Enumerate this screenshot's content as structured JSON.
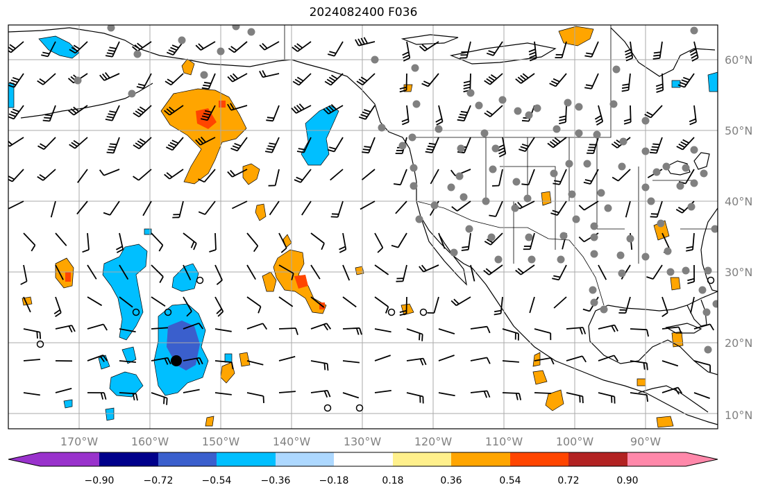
{
  "title": "2024082400 F036",
  "lat_labels": [
    "60°N",
    "50°N",
    "40°N",
    "30°N",
    "20°N",
    "10°N"
  ],
  "lon_labels": [
    "170°W",
    "160°W",
    "150°W",
    "140°W",
    "130°W",
    "120°W",
    "110°W",
    "100°W",
    "90°W"
  ],
  "colorbar": {
    "ticks": [
      "−0.90",
      "−0.72",
      "−0.54",
      "−0.36",
      "−0.18",
      "0.18",
      "0.36",
      "0.54",
      "0.72",
      "0.90"
    ],
    "colors": [
      "#9932cc",
      "#00008b",
      "#3a5fcd",
      "#00bfff",
      "#add8ff",
      "#ffffff",
      "#fff08c",
      "#ffa500",
      "#ff4500",
      "#b22222",
      "#ff88aa"
    ]
  },
  "colors": {
    "grid": "#aaaaaa",
    "coast": "#000000",
    "station": "#808080",
    "positive": "#ffa500",
    "positive_strong": "#ff4500",
    "negative": "#00bfff",
    "negative_light": "#add8ff",
    "negative_strong": "#3a5fcd"
  }
}
